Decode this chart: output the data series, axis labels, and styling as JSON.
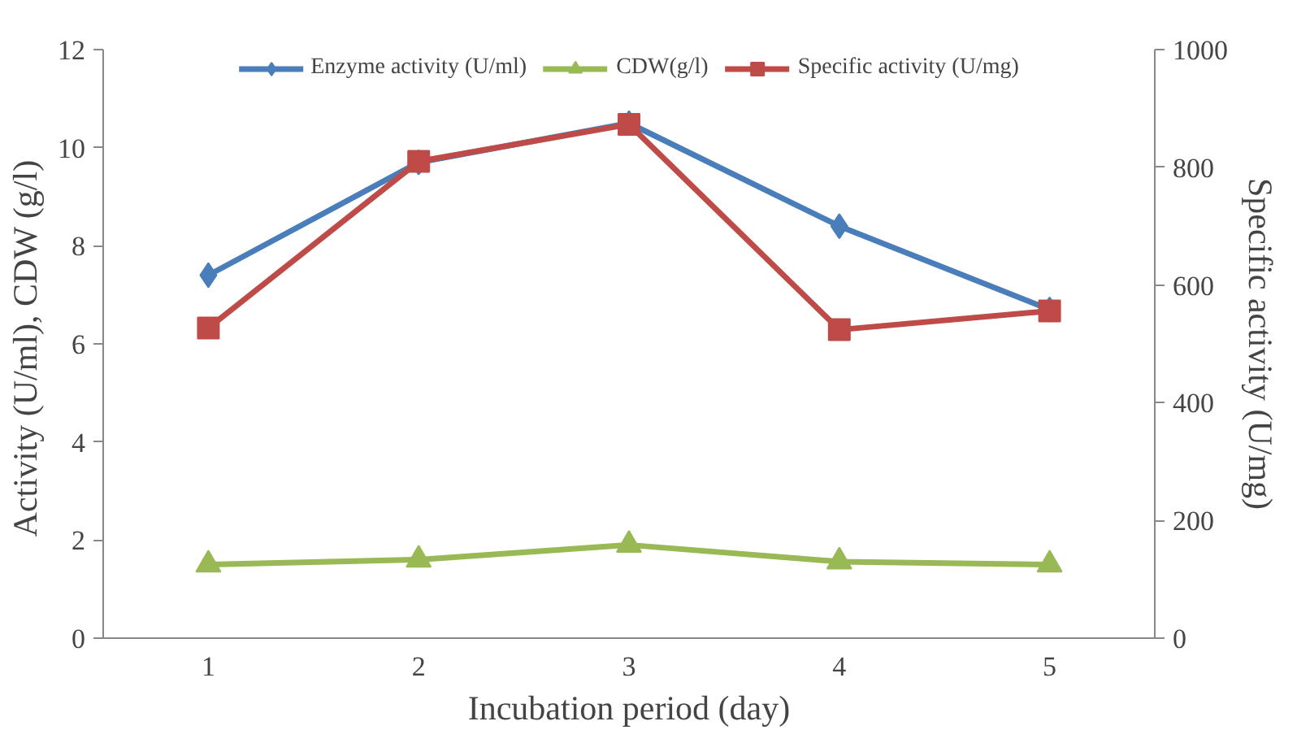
{
  "chart_data": {
    "type": "line",
    "xlabel": "Incubation period (day)",
    "ylabel": "Activity (U/ml),  CDW (g/l)",
    "y2label": "Specific activity (U/mg)",
    "categories": [
      "1",
      "2",
      "3",
      "4",
      "5"
    ],
    "ylim": [
      0,
      12
    ],
    "yticks": [
      0,
      2,
      4,
      6,
      8,
      10,
      12
    ],
    "y2lim": [
      0,
      1000
    ],
    "y2ticks": [
      0,
      200,
      400,
      600,
      800,
      1000
    ],
    "grid": false,
    "legend": "top",
    "series": [
      {
        "name": "Enzyme activity (U/ml)",
        "color": "#4a7ebb",
        "marker": "diamond",
        "values": [
          7.4,
          9.7,
          10.5,
          8.4,
          6.7
        ]
      },
      {
        "name": "CDW(g/l)",
        "color": "#98b954",
        "marker": "triangle",
        "values": [
          1.5,
          1.6,
          1.9,
          1.56,
          1.5
        ]
      },
      {
        "name": "Specific activity (U/mg)",
        "color": "#be4b48",
        "marker": "square",
        "axis": "y2",
        "values": [
          527,
          810,
          873,
          524,
          556
        ]
      }
    ]
  }
}
